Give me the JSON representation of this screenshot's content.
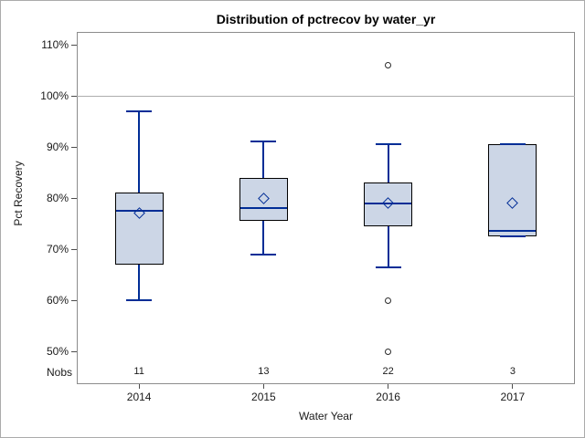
{
  "chart_data": {
    "type": "box",
    "title": "Distribution of pctrecov by water_yr",
    "xlabel": "Water Year",
    "ylabel": "Pct Recovery",
    "nobs_label": "Nobs",
    "categories": [
      "2014",
      "2015",
      "2016",
      "2017"
    ],
    "nobs": [
      11,
      13,
      22,
      3
    ],
    "y_axis": {
      "ticks": [
        110,
        100,
        90,
        80,
        70,
        60,
        50
      ],
      "suffix": "%",
      "reference_line": 100
    },
    "legend": "none",
    "grid": "off",
    "series": [
      {
        "category": "2014",
        "n": 11,
        "whisker_low": 60,
        "q1": 67,
        "median": 77.5,
        "q3": 81,
        "whisker_high": 97,
        "mean": 77,
        "outliers": []
      },
      {
        "category": "2015",
        "n": 13,
        "whisker_low": 69,
        "q1": 75.5,
        "median": 78,
        "q3": 84,
        "whisker_high": 91,
        "mean": 80,
        "outliers": []
      },
      {
        "category": "2016",
        "n": 22,
        "whisker_low": 66.5,
        "q1": 74.5,
        "median": 79,
        "q3": 83,
        "whisker_high": 90.5,
        "mean": 79,
        "outliers": [
          106,
          60,
          50
        ]
      },
      {
        "category": "2017",
        "n": 3,
        "whisker_low": 72.5,
        "q1": 72.5,
        "median": 73.5,
        "q3": 90.5,
        "whisker_high": 90.5,
        "mean": 79,
        "outliers": []
      }
    ],
    "colors": {
      "box_fill": "#ccd6e6",
      "box_border": "#000000",
      "line": "#002d96",
      "outlier_ring": "#2b2b2b",
      "reference_line": "#adadad",
      "frame": "#8c8c8c",
      "text": "#1a1a1a"
    }
  }
}
